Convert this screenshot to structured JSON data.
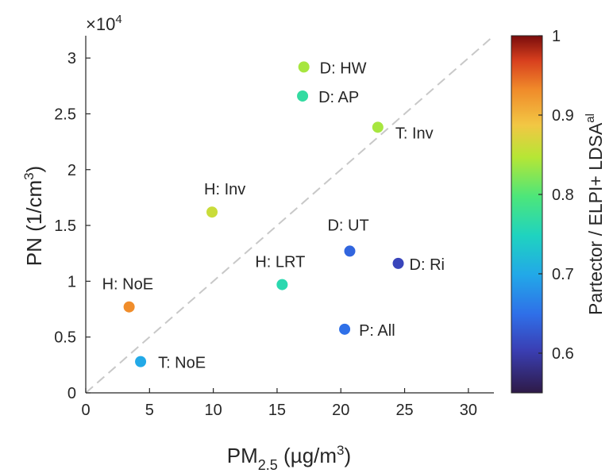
{
  "chart_data": {
    "type": "scatter",
    "xlabel": {
      "main": "PM",
      "sub": "2.5",
      "unit_open": " (µg/m",
      "unit_sup": "3",
      "unit_close": ")"
    },
    "ylabel": {
      "main": "PN (1/cm",
      "sup": "3",
      "close": ")"
    },
    "xlim": [
      0,
      32
    ],
    "ylim": [
      0,
      32000
    ],
    "xticks": [
      0,
      5,
      10,
      15,
      20,
      25,
      30
    ],
    "yticks": [
      0,
      0.5,
      1,
      1.5,
      2,
      2.5,
      3
    ],
    "y_exponent": {
      "prefix": "×10",
      "power": "4"
    },
    "reference_line": {
      "style": "dashed",
      "from": [
        0,
        0
      ],
      "to": [
        32,
        32000
      ]
    },
    "points": [
      {
        "label": "D: HW",
        "x": 17.1,
        "y": 29200,
        "c": 0.84
      },
      {
        "label": "D: AP",
        "x": 17.0,
        "y": 26600,
        "c": 0.77
      },
      {
        "label": "T: Inv",
        "x": 22.9,
        "y": 23800,
        "c": 0.84
      },
      {
        "label": "H: Inv",
        "x": 9.9,
        "y": 16200,
        "c": 0.86
      },
      {
        "label": "D: UT",
        "x": 20.7,
        "y": 12700,
        "c": 0.64
      },
      {
        "label": "D: Ri",
        "x": 24.5,
        "y": 11600,
        "c": 0.61
      },
      {
        "label": "H: LRT",
        "x": 15.4,
        "y": 9700,
        "c": 0.76
      },
      {
        "label": "H: NoE",
        "x": 3.4,
        "y": 7700,
        "c": 0.93
      },
      {
        "label": "P: All",
        "x": 20.3,
        "y": 5700,
        "c": 0.65
      },
      {
        "label": "T: NoE",
        "x": 4.3,
        "y": 2800,
        "c": 0.7
      }
    ],
    "colorbar": {
      "label": {
        "main": "Partector / ELPI+ LDSA",
        "sup": "al"
      },
      "range": [
        0.55,
        1
      ],
      "ticks": [
        0.6,
        0.7,
        0.8,
        0.9,
        1
      ],
      "tick_labels": [
        "0.6",
        "0.7",
        "0.8",
        "0.9",
        "1"
      ],
      "colormap": "jet"
    },
    "grid": false
  }
}
